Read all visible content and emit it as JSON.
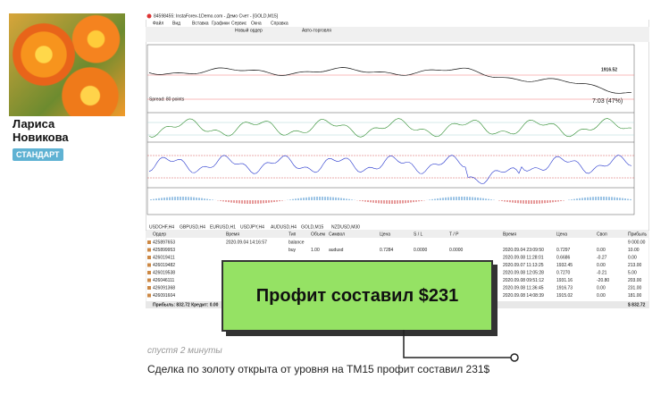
{
  "author": {
    "first_name": "Лариса",
    "last_name": "Новикова",
    "badge": "СТАНДАРТ"
  },
  "screenshot": {
    "title": "84598455: InstaForex-1Demo.com - Демо Счет - [GOLD,M15]",
    "menu": [
      "Файл",
      "Вид",
      "Вставка",
      "Графики",
      "Сервис",
      "Окна",
      "Справка"
    ],
    "toolbar_buttons": [
      "Новый ордер",
      "Авто-торговля"
    ],
    "price_labels": [
      "1916.52",
      "Spread: 80 points",
      "7:03 (47%)"
    ],
    "tabs": [
      "USDCHF,H4",
      "GBPUSD,H4",
      "EURUSD,H1",
      "USDJPY,H4",
      "AUDUSD,H4",
      "GOLD,M15",
      "NZDUSD,M30"
    ],
    "table": {
      "headers": {
        "order": "Ордер",
        "open_time": "Время",
        "type": "Тип",
        "volume": "Объем",
        "symbol": "Символ",
        "price": "Цена",
        "sl": "S / L",
        "tp": "T / P",
        "close_time": "Время",
        "close_price": "Цена",
        "swap": "Своп",
        "profit": "Прибыль"
      },
      "rows": [
        {
          "order": "425897653",
          "open_time": "2020.09.04 14:16:57",
          "type": "balance",
          "profit": "9 000.00"
        },
        {
          "order": "425899953",
          "type": "buy",
          "volume": "1.00",
          "symbol": "audusd",
          "price": "0.7284",
          "sl": "0.0000",
          "tp": "0.0000",
          "close_time": "2020.09.04 23:09:50",
          "close_price": "0.7297",
          "swap": "0.00",
          "profit": "10.00"
        },
        {
          "order": "426019411",
          "close_time": "2020.09.08 11:28:01",
          "close_price": "0.6686",
          "swap": "-0.27",
          "profit": "0.00"
        },
        {
          "order": "426019482",
          "close_time": "2020.09.07 11:13:25",
          "close_price": "1932.45",
          "swap": "0.00",
          "profit": "213.00"
        },
        {
          "order": "426019538",
          "close_time": "2020.09.08 12:05:28",
          "close_price": "0.7270",
          "swap": "-0.21",
          "profit": "5.00"
        },
        {
          "order": "426046111",
          "close_time": "2020.09.08 09:51:12",
          "close_price": "1931.16",
          "swap": "-20.80",
          "profit": "203.00"
        },
        {
          "order": "426091368",
          "close_time": "2020.09.08 11:36:45",
          "close_price": "1916.73",
          "swap": "0.00",
          "profit": "231.00"
        },
        {
          "order": "426091604",
          "close_time": "2020.09.08 14:08:39",
          "close_price": "1915.02",
          "swap": "0.00",
          "profit": "181.00"
        }
      ],
      "footer": {
        "summary": "Прибыль: 832.72  Кредит: 0.00",
        "total": "$ 832.72"
      }
    }
  },
  "callout": "Профит составил $231",
  "posted": "спустя 2 минуты",
  "caption": "Сделка по золоту открыта от уровня на ТМ15  профит составил 231$"
}
